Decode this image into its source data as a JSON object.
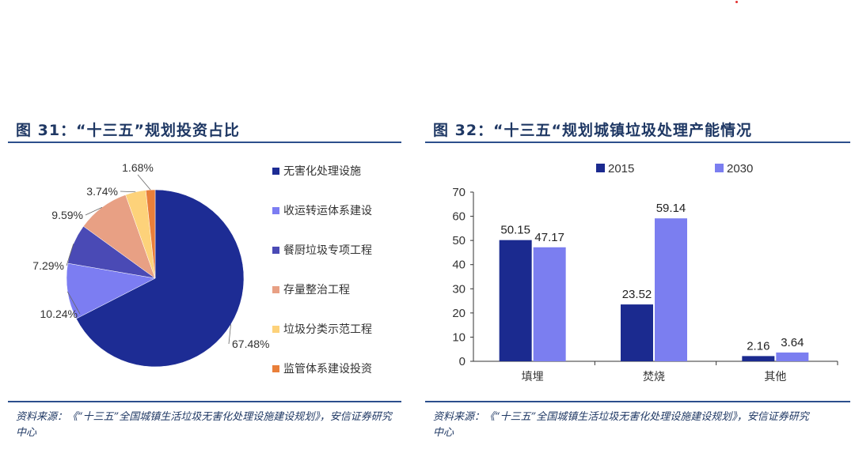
{
  "colors": {
    "title": "#1f3864",
    "rule": "#2c4f8c",
    "series_2015": "#1b2a8f",
    "series_2030": "#7b7ef0",
    "pie": [
      "#1d2c94",
      "#7c7df2",
      "#4a4ab5",
      "#e8a084",
      "#fdd27a",
      "#e97f3a"
    ]
  },
  "left": {
    "title": "图 31：“十三五”规划投资占比",
    "source": "资料来源：《“十三五”全国城镇生活垃圾无害化处理设施建设规划》，安信证券研究中心"
  },
  "right": {
    "title": "图 32：“十三五“规划城镇垃圾处理产能情况",
    "source": "资料来源：《“十三五”全国城镇生活垃圾无害化处理设施建设规划》，安信证券研究中心"
  },
  "chart_data": [
    {
      "type": "pie",
      "title": "",
      "legend_position": "right",
      "slices": [
        {
          "label": "无害化处理设施",
          "value": 67.48,
          "display": "67.48%"
        },
        {
          "label": "收运转运体系建设",
          "value": 10.24,
          "display": "10.24%"
        },
        {
          "label": "餐厨垃圾专项工程",
          "value": 7.29,
          "display": "7.29%"
        },
        {
          "label": "存量整治工程",
          "value": 9.59,
          "display": "9.59%"
        },
        {
          "label": "垃圾分类示范工程",
          "value": 3.74,
          "display": "3.74%"
        },
        {
          "label": "监管体系建设投资",
          "value": 1.68,
          "display": "1.68%"
        }
      ]
    },
    {
      "type": "bar",
      "title": "",
      "legend_position": "top",
      "categories": [
        "填埋",
        "焚烧",
        "其他"
      ],
      "series": [
        {
          "name": "2015",
          "values": [
            50.15,
            23.52,
            2.16
          ]
        },
        {
          "name": "2030",
          "values": [
            47.17,
            59.14,
            3.64
          ]
        }
      ],
      "ylim": [
        0,
        70
      ],
      "yticks": [
        "0",
        "10",
        "20",
        "30",
        "40",
        "50",
        "60",
        "70"
      ],
      "grid": false
    }
  ]
}
